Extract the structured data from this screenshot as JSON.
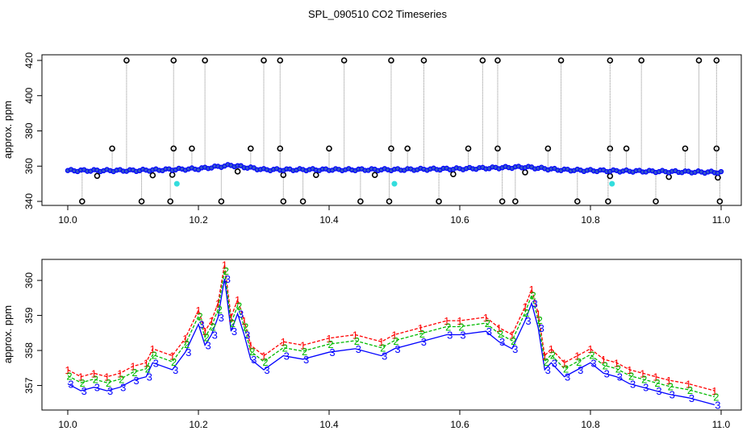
{
  "title": "SPL_090510  CO2 Timeseries",
  "colors": {
    "main": "#0000ff",
    "alt1": "#ff0000",
    "alt2": "#00bb00",
    "marker": "#000000",
    "flag": "#33dddd",
    "trace": "#888888"
  },
  "chart_data": [
    {
      "type": "scatter",
      "title": "",
      "xlabel": "",
      "ylabel": "approx. ppm",
      "xlim": [
        10.0,
        11.0
      ],
      "ylim": [
        340,
        420
      ],
      "xticks": [
        "10.0",
        "10.2",
        "10.4",
        "10.6",
        "10.8",
        "11.0"
      ],
      "yticks": [
        "340",
        "360",
        "380",
        "400",
        "420"
      ],
      "grid": false,
      "baseline": {
        "x": [
          10.0,
          10.1,
          10.2,
          10.25,
          10.3,
          10.4,
          10.5,
          10.6,
          10.7,
          10.75,
          10.8,
          10.9,
          11.0
        ],
        "y": [
          357.5,
          357.5,
          358.5,
          360.5,
          358,
          358,
          358,
          358.5,
          359.5,
          358,
          357.5,
          357,
          356.5
        ]
      },
      "high_spikes_420": [
        10.09,
        10.162,
        10.21,
        10.3,
        10.325,
        10.423,
        10.495,
        10.545,
        10.635,
        10.658,
        10.755,
        10.83,
        10.878,
        10.966,
        10.993
      ],
      "mid_spikes_370": [
        10.068,
        10.162,
        10.19,
        10.28,
        10.325,
        10.4,
        10.495,
        10.52,
        10.613,
        10.658,
        10.735,
        10.83,
        10.855,
        10.945,
        10.993
      ],
      "low_spikes_340": [
        10.022,
        10.113,
        10.157,
        10.235,
        10.33,
        10.36,
        10.448,
        10.492,
        10.568,
        10.665,
        10.685,
        10.78,
        10.827,
        10.9,
        10.998
      ],
      "flagged_points": [
        {
          "x": 10.167,
          "y": 350
        },
        {
          "x": 10.5,
          "y": 350
        },
        {
          "x": 10.833,
          "y": 350
        }
      ]
    },
    {
      "type": "line",
      "title": "",
      "xlabel": "",
      "ylabel": "approx. ppm",
      "xlim": [
        10.0,
        11.0
      ],
      "ylim": [
        356.3,
        360.6
      ],
      "xticks": [
        "10.0",
        "10.2",
        "10.4",
        "10.6",
        "10.8",
        "11.0"
      ],
      "yticks": [
        "357",
        "358",
        "359",
        "360"
      ],
      "grid": false,
      "series": [
        {
          "marker": "1",
          "color": "#ff0000",
          "offset": 0.25
        },
        {
          "marker": "2",
          "color": "#00bb00",
          "offset": 0.08
        },
        {
          "marker": "3",
          "color": "#0000ff",
          "offset": -0.15
        }
      ],
      "x": [
        10.0,
        10.02,
        10.04,
        10.06,
        10.08,
        10.1,
        10.12,
        10.13,
        10.16,
        10.18,
        10.2,
        10.21,
        10.22,
        10.23,
        10.24,
        10.25,
        10.26,
        10.27,
        10.28,
        10.3,
        10.33,
        10.36,
        10.4,
        10.44,
        10.48,
        10.5,
        10.54,
        10.58,
        10.6,
        10.64,
        10.66,
        10.68,
        10.7,
        10.71,
        10.72,
        10.73,
        10.74,
        10.76,
        10.78,
        10.8,
        10.82,
        10.84,
        10.86,
        10.88,
        10.9,
        10.92,
        10.95,
        10.99
      ],
      "values": [
        357.2,
        357.0,
        357.1,
        357.0,
        357.1,
        357.3,
        357.4,
        357.8,
        357.6,
        358.1,
        358.9,
        358.3,
        358.6,
        359.1,
        360.2,
        358.7,
        359.2,
        358.6,
        357.9,
        357.6,
        358.0,
        357.9,
        358.1,
        358.2,
        358.0,
        358.2,
        358.4,
        358.6,
        358.6,
        358.7,
        358.4,
        358.2,
        359.0,
        359.5,
        358.8,
        357.6,
        357.8,
        357.4,
        357.6,
        357.8,
        357.5,
        357.4,
        357.2,
        357.1,
        357.0,
        356.9,
        356.8,
        356.6
      ]
    }
  ]
}
